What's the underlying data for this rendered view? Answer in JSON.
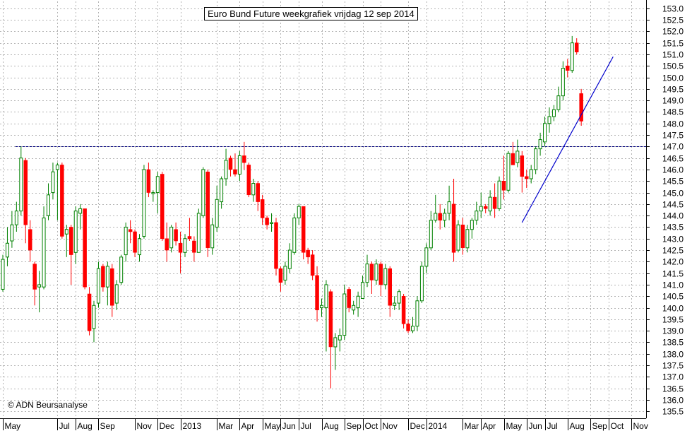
{
  "chart_data": {
    "type": "candlestick",
    "title": "Euro Bund Future weekgrafiek vrijdag 12 sep 2014",
    "copyright": "© ADN Beursanalyse",
    "y_ticks": [
      "135.5",
      "136.0",
      "136.5",
      "137.0",
      "137.5",
      "138.0",
      "138.5",
      "139.0",
      "139.5",
      "140.0",
      "140.5",
      "141.0",
      "141.5",
      "142.0",
      "142.5",
      "143.0",
      "143.5",
      "144.0",
      "144.5",
      "145.0",
      "145.5",
      "146.0",
      "146.5",
      "147.0",
      "147.5",
      "148.0",
      "148.5",
      "149.0",
      "149.5",
      "150.0",
      "150.5",
      "151.0",
      "151.5",
      "152.0",
      "152.5",
      "153.0"
    ],
    "ylim": [
      135.2,
      153.3
    ],
    "x_ticks": [
      "May",
      "Jul",
      "Aug",
      "Sep",
      "Nov",
      "Dec",
      "2013",
      "Mar",
      "Apr",
      "May",
      "Jun",
      "Jul",
      "Aug",
      "Sep",
      "Oct",
      "Nov",
      "Dec",
      "2014",
      "Mar",
      "Apr",
      "May",
      "Jun",
      "Jul",
      "Aug",
      "Sep",
      "Oct",
      "Nov"
    ],
    "x_tick_weeks": [
      0,
      12,
      16,
      21,
      29,
      34,
      39,
      47,
      52,
      57,
      61,
      65,
      70,
      75,
      79,
      83,
      89,
      93,
      101,
      105,
      110,
      115,
      119,
      124,
      129,
      133,
      138
    ],
    "n_weeks": 141,
    "horizontal_line": 147.0,
    "trendline": {
      "from": {
        "week": 114,
        "price": 143.7
      },
      "to": {
        "week": 134,
        "price": 150.9
      }
    },
    "bull_color": "#008000",
    "bear_color": "#ff0000",
    "grid": true,
    "candles": [
      {
        "o": 140.8,
        "h": 142.3,
        "l": 140.7,
        "c": 142.1
      },
      {
        "o": 142.2,
        "h": 143.5,
        "l": 141.8,
        "c": 142.8
      },
      {
        "o": 142.9,
        "h": 144.2,
        "l": 142.6,
        "c": 143.6
      },
      {
        "o": 143.6,
        "h": 144.6,
        "l": 143.3,
        "c": 144.2
      },
      {
        "o": 144.2,
        "h": 147.0,
        "l": 144.0,
        "c": 146.5
      },
      {
        "o": 146.4,
        "h": 146.5,
        "l": 142.8,
        "c": 143.6
      },
      {
        "o": 143.4,
        "h": 143.8,
        "l": 142.0,
        "c": 142.5
      },
      {
        "o": 141.9,
        "h": 142.0,
        "l": 140.1,
        "c": 140.8
      },
      {
        "o": 140.9,
        "h": 141.6,
        "l": 139.8,
        "c": 141.0
      },
      {
        "o": 140.9,
        "h": 144.4,
        "l": 140.8,
        "c": 143.9
      },
      {
        "o": 144.0,
        "h": 145.4,
        "l": 143.8,
        "c": 144.9
      },
      {
        "o": 145.0,
        "h": 146.3,
        "l": 144.7,
        "c": 145.9
      },
      {
        "o": 146.0,
        "h": 146.3,
        "l": 143.8,
        "c": 146.2
      },
      {
        "o": 146.2,
        "h": 146.3,
        "l": 143.0,
        "c": 143.1
      },
      {
        "o": 143.2,
        "h": 143.6,
        "l": 142.2,
        "c": 143.4
      },
      {
        "o": 143.5,
        "h": 143.6,
        "l": 141.0,
        "c": 142.3
      },
      {
        "o": 142.4,
        "h": 144.4,
        "l": 141.9,
        "c": 144.2
      },
      {
        "o": 144.1,
        "h": 144.5,
        "l": 143.4,
        "c": 144.3
      },
      {
        "o": 144.3,
        "h": 144.3,
        "l": 140.8,
        "c": 140.9
      },
      {
        "o": 140.6,
        "h": 140.9,
        "l": 138.8,
        "c": 139.0
      },
      {
        "o": 139.1,
        "h": 140.3,
        "l": 138.5,
        "c": 140.1
      },
      {
        "o": 140.2,
        "h": 142.0,
        "l": 140.0,
        "c": 141.7
      },
      {
        "o": 141.8,
        "h": 141.9,
        "l": 140.7,
        "c": 140.9
      },
      {
        "o": 140.9,
        "h": 142.0,
        "l": 140.1,
        "c": 141.8
      },
      {
        "o": 141.7,
        "h": 141.9,
        "l": 139.6,
        "c": 140.1
      },
      {
        "o": 140.2,
        "h": 141.2,
        "l": 139.9,
        "c": 141.0
      },
      {
        "o": 141.1,
        "h": 142.3,
        "l": 141.0,
        "c": 142.2
      },
      {
        "o": 142.3,
        "h": 143.7,
        "l": 142.0,
        "c": 143.5
      },
      {
        "o": 143.4,
        "h": 143.8,
        "l": 142.8,
        "c": 143.3
      },
      {
        "o": 143.3,
        "h": 143.4,
        "l": 142.2,
        "c": 142.4
      },
      {
        "o": 142.3,
        "h": 143.2,
        "l": 142.0,
        "c": 143.0
      },
      {
        "o": 143.1,
        "h": 146.2,
        "l": 143.0,
        "c": 146.0
      },
      {
        "o": 146.0,
        "h": 146.3,
        "l": 144.8,
        "c": 145.0
      },
      {
        "o": 145.0,
        "h": 145.1,
        "l": 144.6,
        "c": 145.0
      },
      {
        "o": 145.0,
        "h": 145.9,
        "l": 144.1,
        "c": 145.7
      },
      {
        "o": 145.8,
        "h": 145.9,
        "l": 142.9,
        "c": 143.0
      },
      {
        "o": 143.0,
        "h": 143.7,
        "l": 142.0,
        "c": 142.5
      },
      {
        "o": 142.6,
        "h": 143.6,
        "l": 142.4,
        "c": 143.5
      },
      {
        "o": 143.4,
        "h": 143.7,
        "l": 142.7,
        "c": 142.9
      },
      {
        "o": 142.8,
        "h": 143.3,
        "l": 141.5,
        "c": 142.4
      },
      {
        "o": 142.4,
        "h": 143.2,
        "l": 142.2,
        "c": 143.0
      },
      {
        "o": 143.1,
        "h": 143.9,
        "l": 142.9,
        "c": 143.0
      },
      {
        "o": 142.9,
        "h": 143.1,
        "l": 142.0,
        "c": 142.4
      },
      {
        "o": 142.4,
        "h": 144.3,
        "l": 142.4,
        "c": 144.1
      },
      {
        "o": 144.0,
        "h": 146.1,
        "l": 143.9,
        "c": 146.0
      },
      {
        "o": 145.9,
        "h": 146.0,
        "l": 142.2,
        "c": 142.6
      },
      {
        "o": 142.6,
        "h": 143.9,
        "l": 142.3,
        "c": 143.6
      },
      {
        "o": 143.5,
        "h": 145.3,
        "l": 143.3,
        "c": 144.7
      },
      {
        "o": 144.6,
        "h": 145.7,
        "l": 144.3,
        "c": 145.6
      },
      {
        "o": 145.6,
        "h": 146.9,
        "l": 145.3,
        "c": 146.4
      },
      {
        "o": 146.5,
        "h": 146.6,
        "l": 145.7,
        "c": 146.0
      },
      {
        "o": 146.0,
        "h": 146.7,
        "l": 145.7,
        "c": 145.8
      },
      {
        "o": 145.8,
        "h": 146.8,
        "l": 145.5,
        "c": 146.6
      },
      {
        "o": 146.6,
        "h": 147.2,
        "l": 146.0,
        "c": 146.3
      },
      {
        "o": 146.2,
        "h": 146.3,
        "l": 144.8,
        "c": 144.9
      },
      {
        "o": 144.9,
        "h": 145.6,
        "l": 144.6,
        "c": 145.4
      },
      {
        "o": 145.4,
        "h": 145.5,
        "l": 144.2,
        "c": 144.6
      },
      {
        "o": 144.7,
        "h": 144.9,
        "l": 143.6,
        "c": 143.9
      },
      {
        "o": 143.9,
        "h": 144.0,
        "l": 143.4,
        "c": 143.6
      },
      {
        "o": 143.7,
        "h": 144.1,
        "l": 143.3,
        "c": 143.7
      },
      {
        "o": 143.7,
        "h": 143.9,
        "l": 141.4,
        "c": 141.7
      },
      {
        "o": 141.7,
        "h": 141.8,
        "l": 140.7,
        "c": 141.1
      },
      {
        "o": 141.2,
        "h": 142.0,
        "l": 141.0,
        "c": 141.8
      },
      {
        "o": 141.7,
        "h": 142.8,
        "l": 141.5,
        "c": 142.5
      },
      {
        "o": 142.4,
        "h": 144.1,
        "l": 142.3,
        "c": 143.9
      },
      {
        "o": 143.9,
        "h": 144.5,
        "l": 143.6,
        "c": 144.4
      },
      {
        "o": 144.4,
        "h": 144.4,
        "l": 142.1,
        "c": 142.4
      },
      {
        "o": 142.5,
        "h": 142.6,
        "l": 141.9,
        "c": 142.2
      },
      {
        "o": 142.3,
        "h": 142.5,
        "l": 141.2,
        "c": 141.4
      },
      {
        "o": 141.4,
        "h": 141.8,
        "l": 139.4,
        "c": 139.9
      },
      {
        "o": 140.0,
        "h": 140.4,
        "l": 139.6,
        "c": 140.1
      },
      {
        "o": 140.0,
        "h": 141.2,
        "l": 138.1,
        "c": 141.0
      },
      {
        "o": 140.7,
        "h": 140.8,
        "l": 136.5,
        "c": 138.3
      },
      {
        "o": 138.3,
        "h": 138.9,
        "l": 137.3,
        "c": 138.7
      },
      {
        "o": 138.6,
        "h": 139.1,
        "l": 138.1,
        "c": 138.8
      },
      {
        "o": 138.8,
        "h": 141.0,
        "l": 138.6,
        "c": 140.6
      },
      {
        "o": 140.8,
        "h": 140.9,
        "l": 139.8,
        "c": 140.0
      },
      {
        "o": 139.9,
        "h": 140.3,
        "l": 139.7,
        "c": 140.1
      },
      {
        "o": 140.0,
        "h": 140.7,
        "l": 139.6,
        "c": 140.5
      },
      {
        "o": 140.4,
        "h": 141.4,
        "l": 140.4,
        "c": 141.1
      },
      {
        "o": 141.1,
        "h": 142.3,
        "l": 140.9,
        "c": 141.9
      },
      {
        "o": 141.9,
        "h": 142.0,
        "l": 140.6,
        "c": 141.2
      },
      {
        "o": 141.2,
        "h": 142.1,
        "l": 141.0,
        "c": 141.9
      },
      {
        "o": 141.9,
        "h": 142.0,
        "l": 140.5,
        "c": 141.0
      },
      {
        "o": 141.0,
        "h": 141.9,
        "l": 140.8,
        "c": 141.7
      },
      {
        "o": 141.7,
        "h": 141.8,
        "l": 139.6,
        "c": 140.1
      },
      {
        "o": 140.1,
        "h": 140.5,
        "l": 139.9,
        "c": 140.2
      },
      {
        "o": 140.2,
        "h": 140.8,
        "l": 139.9,
        "c": 140.7
      },
      {
        "o": 140.5,
        "h": 140.6,
        "l": 139.1,
        "c": 139.3
      },
      {
        "o": 139.3,
        "h": 139.5,
        "l": 138.9,
        "c": 139.0
      },
      {
        "o": 139.0,
        "h": 139.6,
        "l": 138.9,
        "c": 139.2
      },
      {
        "o": 139.2,
        "h": 140.5,
        "l": 139.0,
        "c": 140.3
      },
      {
        "o": 140.3,
        "h": 142.0,
        "l": 140.2,
        "c": 141.8
      },
      {
        "o": 141.8,
        "h": 142.8,
        "l": 141.5,
        "c": 142.6
      },
      {
        "o": 142.6,
        "h": 144.2,
        "l": 142.5,
        "c": 143.8
      },
      {
        "o": 143.8,
        "h": 144.9,
        "l": 143.7,
        "c": 144.1
      },
      {
        "o": 144.1,
        "h": 144.5,
        "l": 143.4,
        "c": 143.8
      },
      {
        "o": 143.8,
        "h": 144.3,
        "l": 143.5,
        "c": 144.1
      },
      {
        "o": 144.1,
        "h": 145.3,
        "l": 143.8,
        "c": 144.6
      },
      {
        "o": 144.5,
        "h": 145.6,
        "l": 142.0,
        "c": 142.4
      },
      {
        "o": 142.5,
        "h": 143.8,
        "l": 142.4,
        "c": 143.6
      },
      {
        "o": 143.6,
        "h": 143.9,
        "l": 142.3,
        "c": 142.6
      },
      {
        "o": 142.6,
        "h": 143.6,
        "l": 142.4,
        "c": 143.4
      },
      {
        "o": 143.4,
        "h": 143.9,
        "l": 143.0,
        "c": 143.8
      },
      {
        "o": 143.8,
        "h": 144.6,
        "l": 143.6,
        "c": 144.2
      },
      {
        "o": 144.2,
        "h": 145.0,
        "l": 143.9,
        "c": 144.4
      },
      {
        "o": 144.4,
        "h": 144.5,
        "l": 144.1,
        "c": 144.3
      },
      {
        "o": 144.2,
        "h": 145.1,
        "l": 144.0,
        "c": 144.8
      },
      {
        "o": 144.8,
        "h": 145.4,
        "l": 143.9,
        "c": 144.3
      },
      {
        "o": 144.3,
        "h": 145.7,
        "l": 144.2,
        "c": 145.5
      },
      {
        "o": 145.5,
        "h": 146.6,
        "l": 144.7,
        "c": 145.1
      },
      {
        "o": 145.1,
        "h": 146.8,
        "l": 145.0,
        "c": 146.7
      },
      {
        "o": 146.7,
        "h": 147.2,
        "l": 146.2,
        "c": 146.2
      },
      {
        "o": 146.3,
        "h": 147.3,
        "l": 146.1,
        "c": 146.8
      },
      {
        "o": 146.6,
        "h": 146.8,
        "l": 145.0,
        "c": 145.7
      },
      {
        "o": 145.7,
        "h": 146.0,
        "l": 145.2,
        "c": 145.6
      },
      {
        "o": 145.6,
        "h": 146.2,
        "l": 145.4,
        "c": 146.0
      },
      {
        "o": 146.0,
        "h": 147.0,
        "l": 145.8,
        "c": 146.9
      },
      {
        "o": 146.9,
        "h": 147.6,
        "l": 146.6,
        "c": 147.3
      },
      {
        "o": 147.2,
        "h": 148.3,
        "l": 147.0,
        "c": 148.0
      },
      {
        "o": 148.0,
        "h": 148.7,
        "l": 147.6,
        "c": 148.3
      },
      {
        "o": 148.3,
        "h": 148.8,
        "l": 148.1,
        "c": 148.6
      },
      {
        "o": 148.6,
        "h": 149.6,
        "l": 148.5,
        "c": 149.2
      },
      {
        "o": 149.2,
        "h": 150.7,
        "l": 149.0,
        "c": 150.4
      },
      {
        "o": 150.5,
        "h": 150.8,
        "l": 150.0,
        "c": 150.3
      },
      {
        "o": 150.3,
        "h": 151.8,
        "l": 150.2,
        "c": 151.5
      },
      {
        "o": 151.5,
        "h": 151.7,
        "l": 151.0,
        "c": 151.1
      },
      {
        "o": 149.3,
        "h": 149.5,
        "l": 147.9,
        "c": 148.1
      }
    ]
  }
}
